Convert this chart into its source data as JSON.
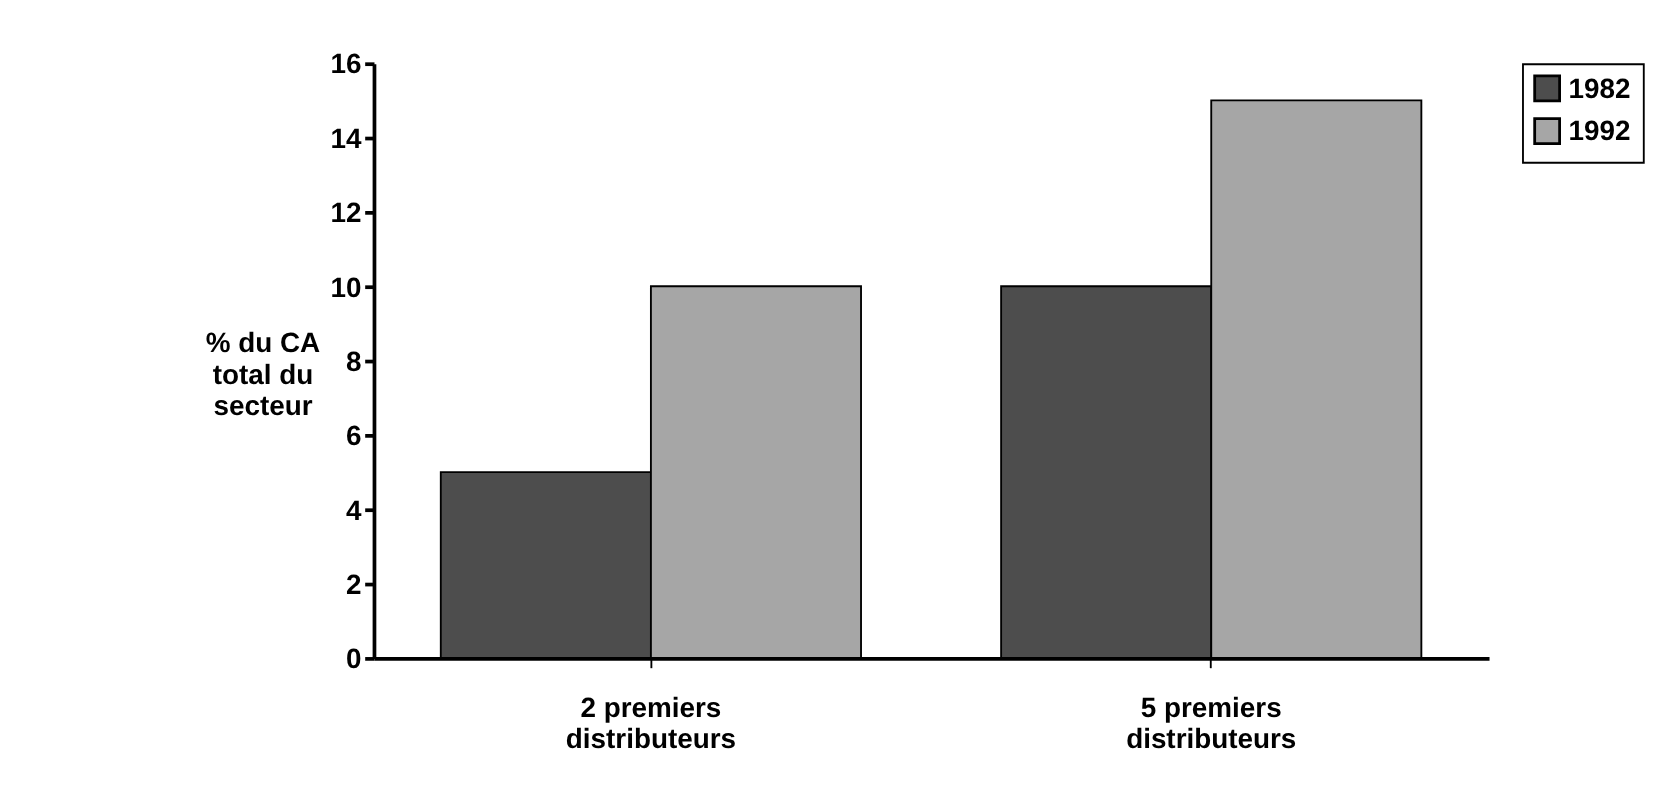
{
  "chart_data": {
    "type": "bar",
    "categories": [
      "2 premiers distributeurs",
      "5 premiers distributeurs"
    ],
    "series": [
      {
        "name": "1982",
        "color": "#4d4d4d",
        "values": [
          5,
          10
        ]
      },
      {
        "name": "1992",
        "color": "#a6a6a6",
        "values": [
          10,
          15
        ]
      }
    ],
    "ylabel": "% du CA total du secteur",
    "ylim": [
      0,
      16
    ],
    "yticks": [
      0,
      2,
      4,
      6,
      8,
      10,
      12,
      14,
      16
    ],
    "grid": false,
    "legend": "right"
  }
}
